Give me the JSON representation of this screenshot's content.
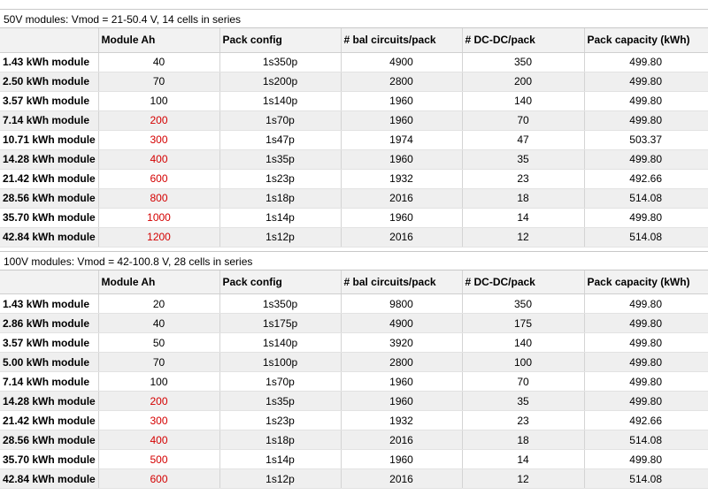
{
  "sections": [
    {
      "title": "50V modules: Vmod = 21-50.4 V, 14 cells in series",
      "headers": [
        "",
        "Module Ah",
        "Pack config",
        "# bal circuits/pack",
        "# DC-DC/pack",
        "Pack capacity (kWh)"
      ],
      "rows": [
        {
          "module": "1.43 kWh module",
          "ah": "40",
          "ah_red": false,
          "config": "1s350p",
          "bal": "4900",
          "dcdc": "350",
          "cap": "499.80"
        },
        {
          "module": "2.50 kWh module",
          "ah": "70",
          "ah_red": false,
          "config": "1s200p",
          "bal": "2800",
          "dcdc": "200",
          "cap": "499.80"
        },
        {
          "module": "3.57 kWh module",
          "ah": "100",
          "ah_red": false,
          "config": "1s140p",
          "bal": "1960",
          "dcdc": "140",
          "cap": "499.80"
        },
        {
          "module": "7.14 kWh module",
          "ah": "200",
          "ah_red": true,
          "config": "1s70p",
          "bal": "1960",
          "dcdc": "70",
          "cap": "499.80"
        },
        {
          "module": "10.71 kWh module",
          "ah": "300",
          "ah_red": true,
          "config": "1s47p",
          "bal": "1974",
          "dcdc": "47",
          "cap": "503.37"
        },
        {
          "module": "14.28 kWh module",
          "ah": "400",
          "ah_red": true,
          "config": "1s35p",
          "bal": "1960",
          "dcdc": "35",
          "cap": "499.80"
        },
        {
          "module": "21.42 kWh module",
          "ah": "600",
          "ah_red": true,
          "config": "1s23p",
          "bal": "1932",
          "dcdc": "23",
          "cap": "492.66"
        },
        {
          "module": "28.56 kWh module",
          "ah": "800",
          "ah_red": true,
          "config": "1s18p",
          "bal": "2016",
          "dcdc": "18",
          "cap": "514.08"
        },
        {
          "module": "35.70 kWh module",
          "ah": "1000",
          "ah_red": true,
          "config": "1s14p",
          "bal": "1960",
          "dcdc": "14",
          "cap": "499.80"
        },
        {
          "module": "42.84 kWh module",
          "ah": "1200",
          "ah_red": true,
          "config": "1s12p",
          "bal": "2016",
          "dcdc": "12",
          "cap": "514.08"
        }
      ]
    },
    {
      "title": "100V modules: Vmod = 42-100.8 V, 28 cells in series",
      "headers": [
        "",
        "Module Ah",
        "Pack config",
        "# bal circuits/pack",
        "# DC-DC/pack",
        "Pack capacity (kWh)"
      ],
      "rows": [
        {
          "module": "1.43 kWh module",
          "ah": "20",
          "ah_red": false,
          "config": "1s350p",
          "bal": "9800",
          "dcdc": "350",
          "cap": "499.80"
        },
        {
          "module": "2.86 kWh module",
          "ah": "40",
          "ah_red": false,
          "config": "1s175p",
          "bal": "4900",
          "dcdc": "175",
          "cap": "499.80"
        },
        {
          "module": "3.57 kWh module",
          "ah": "50",
          "ah_red": false,
          "config": "1s140p",
          "bal": "3920",
          "dcdc": "140",
          "cap": "499.80"
        },
        {
          "module": "5.00 kWh module",
          "ah": "70",
          "ah_red": false,
          "config": "1s100p",
          "bal": "2800",
          "dcdc": "100",
          "cap": "499.80"
        },
        {
          "module": "7.14 kWh module",
          "ah": "100",
          "ah_red": false,
          "config": "1s70p",
          "bal": "1960",
          "dcdc": "70",
          "cap": "499.80"
        },
        {
          "module": "14.28 kWh module",
          "ah": "200",
          "ah_red": true,
          "config": "1s35p",
          "bal": "1960",
          "dcdc": "35",
          "cap": "499.80"
        },
        {
          "module": "21.42 kWh module",
          "ah": "300",
          "ah_red": true,
          "config": "1s23p",
          "bal": "1932",
          "dcdc": "23",
          "cap": "492.66"
        },
        {
          "module": "28.56 kWh module",
          "ah": "400",
          "ah_red": true,
          "config": "1s18p",
          "bal": "2016",
          "dcdc": "18",
          "cap": "514.08"
        },
        {
          "module": "35.70 kWh module",
          "ah": "500",
          "ah_red": true,
          "config": "1s14p",
          "bal": "1960",
          "dcdc": "14",
          "cap": "499.80"
        },
        {
          "module": "42.84 kWh module",
          "ah": "600",
          "ah_red": true,
          "config": "1s12p",
          "bal": "2016",
          "dcdc": "12",
          "cap": "514.08"
        }
      ]
    }
  ],
  "colors": {
    "highlight_text": "#d40000",
    "stripe": "#efefef",
    "header_bg": "#f2f2f2"
  }
}
